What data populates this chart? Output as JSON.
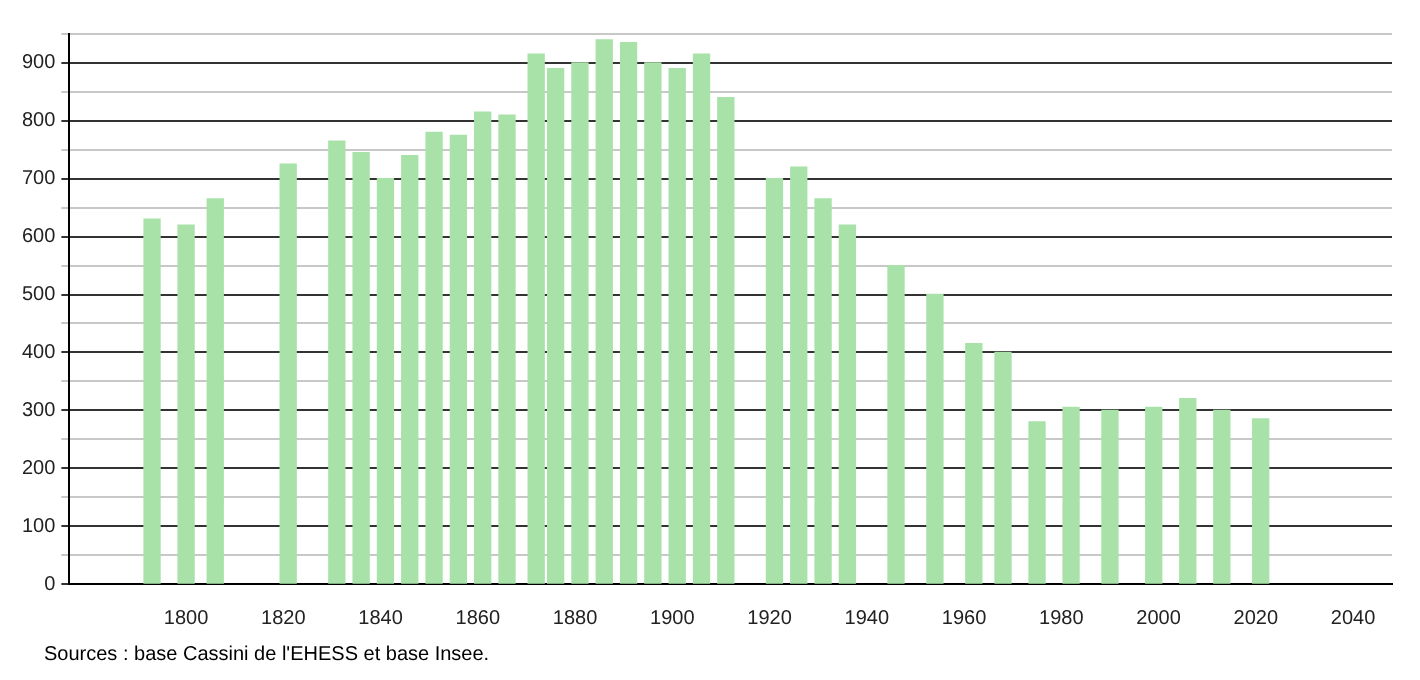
{
  "chart_data": {
    "type": "bar",
    "x": [
      1793,
      1800,
      1806,
      1821,
      1831,
      1836,
      1841,
      1846,
      1851,
      1856,
      1861,
      1866,
      1872,
      1876,
      1881,
      1886,
      1891,
      1896,
      1901,
      1906,
      1911,
      1921,
      1926,
      1931,
      1936,
      1946,
      1954,
      1962,
      1968,
      1975,
      1982,
      1990,
      1999,
      2006,
      2013,
      2021
    ],
    "values": [
      630,
      620,
      665,
      725,
      765,
      745,
      700,
      740,
      780,
      775,
      815,
      810,
      915,
      890,
      900,
      940,
      935,
      900,
      890,
      915,
      840,
      700,
      720,
      665,
      620,
      550,
      500,
      415,
      400,
      280,
      305,
      300,
      305,
      320,
      300,
      285
    ],
    "color": "#a8e2a8",
    "xlim": [
      1776,
      2048
    ],
    "xticks": [
      1800,
      1820,
      1840,
      1860,
      1880,
      1900,
      1920,
      1940,
      1960,
      1980,
      2000,
      2020,
      2040
    ],
    "ylim": [
      0,
      950
    ],
    "yticks": [
      0,
      {
        "value": 50,
        "label": null
      },
      100,
      {
        "value": 150,
        "label": null
      },
      200,
      {
        "value": 250,
        "label": null
      },
      300,
      {
        "value": 350,
        "label": null
      },
      400,
      {
        "value": 450,
        "label": null
      },
      500,
      {
        "value": 550,
        "label": null
      },
      600,
      {
        "value": 650,
        "label": null
      },
      700,
      {
        "value": 750,
        "label": null
      },
      800,
      {
        "value": 850,
        "label": null
      },
      900,
      {
        "value": 950,
        "label": null
      }
    ],
    "grid": "y",
    "annotations": [
      "Sources : base Cassini de l'EHESS et base Insee."
    ]
  }
}
